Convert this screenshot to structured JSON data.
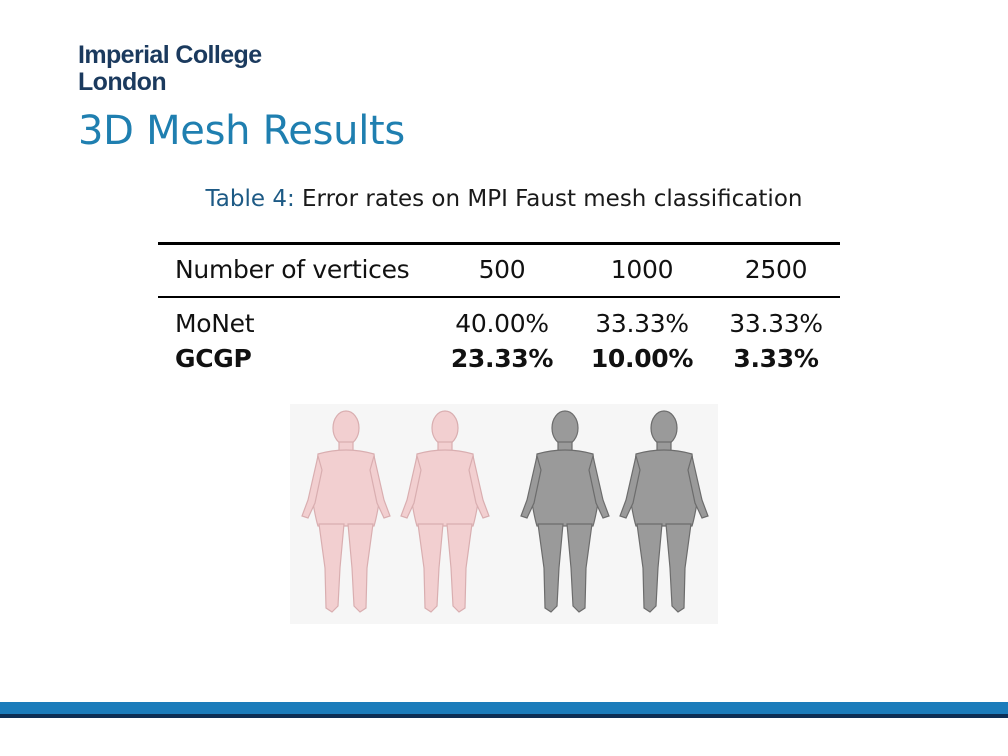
{
  "logo": {
    "line1": "Imperial College",
    "line2": "London"
  },
  "slide": {
    "title": "3D Mesh Results"
  },
  "table": {
    "caption_label": "Table 4:",
    "caption_text": "Error rates on MPI Faust mesh classification",
    "headers": [
      "Number of vertices",
      "500",
      "1000",
      "2500"
    ],
    "rows": [
      {
        "method": "MoNet",
        "values": [
          "40.00%",
          "33.33%",
          "33.33%"
        ],
        "bold": false
      },
      {
        "method": "GCGP",
        "values": [
          "23.33%",
          "10.00%",
          "3.33%"
        ],
        "bold": true
      }
    ]
  },
  "figure": {
    "meshes": [
      {
        "color": "#f2cfd0",
        "shade": "#d9aeb0"
      },
      {
        "color": "#f2cfd0",
        "shade": "#d9aeb0"
      },
      {
        "color": "#9a9a9a",
        "shade": "#6c6c6c"
      },
      {
        "color": "#9a9a9a",
        "shade": "#6c6c6c"
      }
    ]
  },
  "colors": {
    "title": "#1f7fb0",
    "footer_blue": "#1b7cbb",
    "footer_dark": "#0d2f55"
  }
}
